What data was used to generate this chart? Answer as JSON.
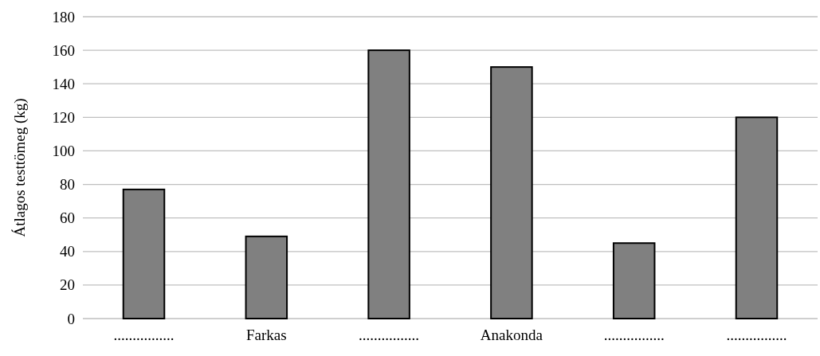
{
  "chart_data": {
    "type": "bar",
    "ylabel": "Átlagos testtömeg (kg)",
    "categories": [
      "................",
      "Farkas",
      "................",
      "Anakonda",
      "................",
      "................"
    ],
    "values": [
      77,
      49,
      160,
      150,
      45,
      120
    ],
    "color": "#808080",
    "ylim": [
      0,
      180
    ],
    "yticks": [
      0,
      20,
      40,
      60,
      80,
      100,
      120,
      140,
      160,
      180
    ],
    "grid": "y"
  }
}
